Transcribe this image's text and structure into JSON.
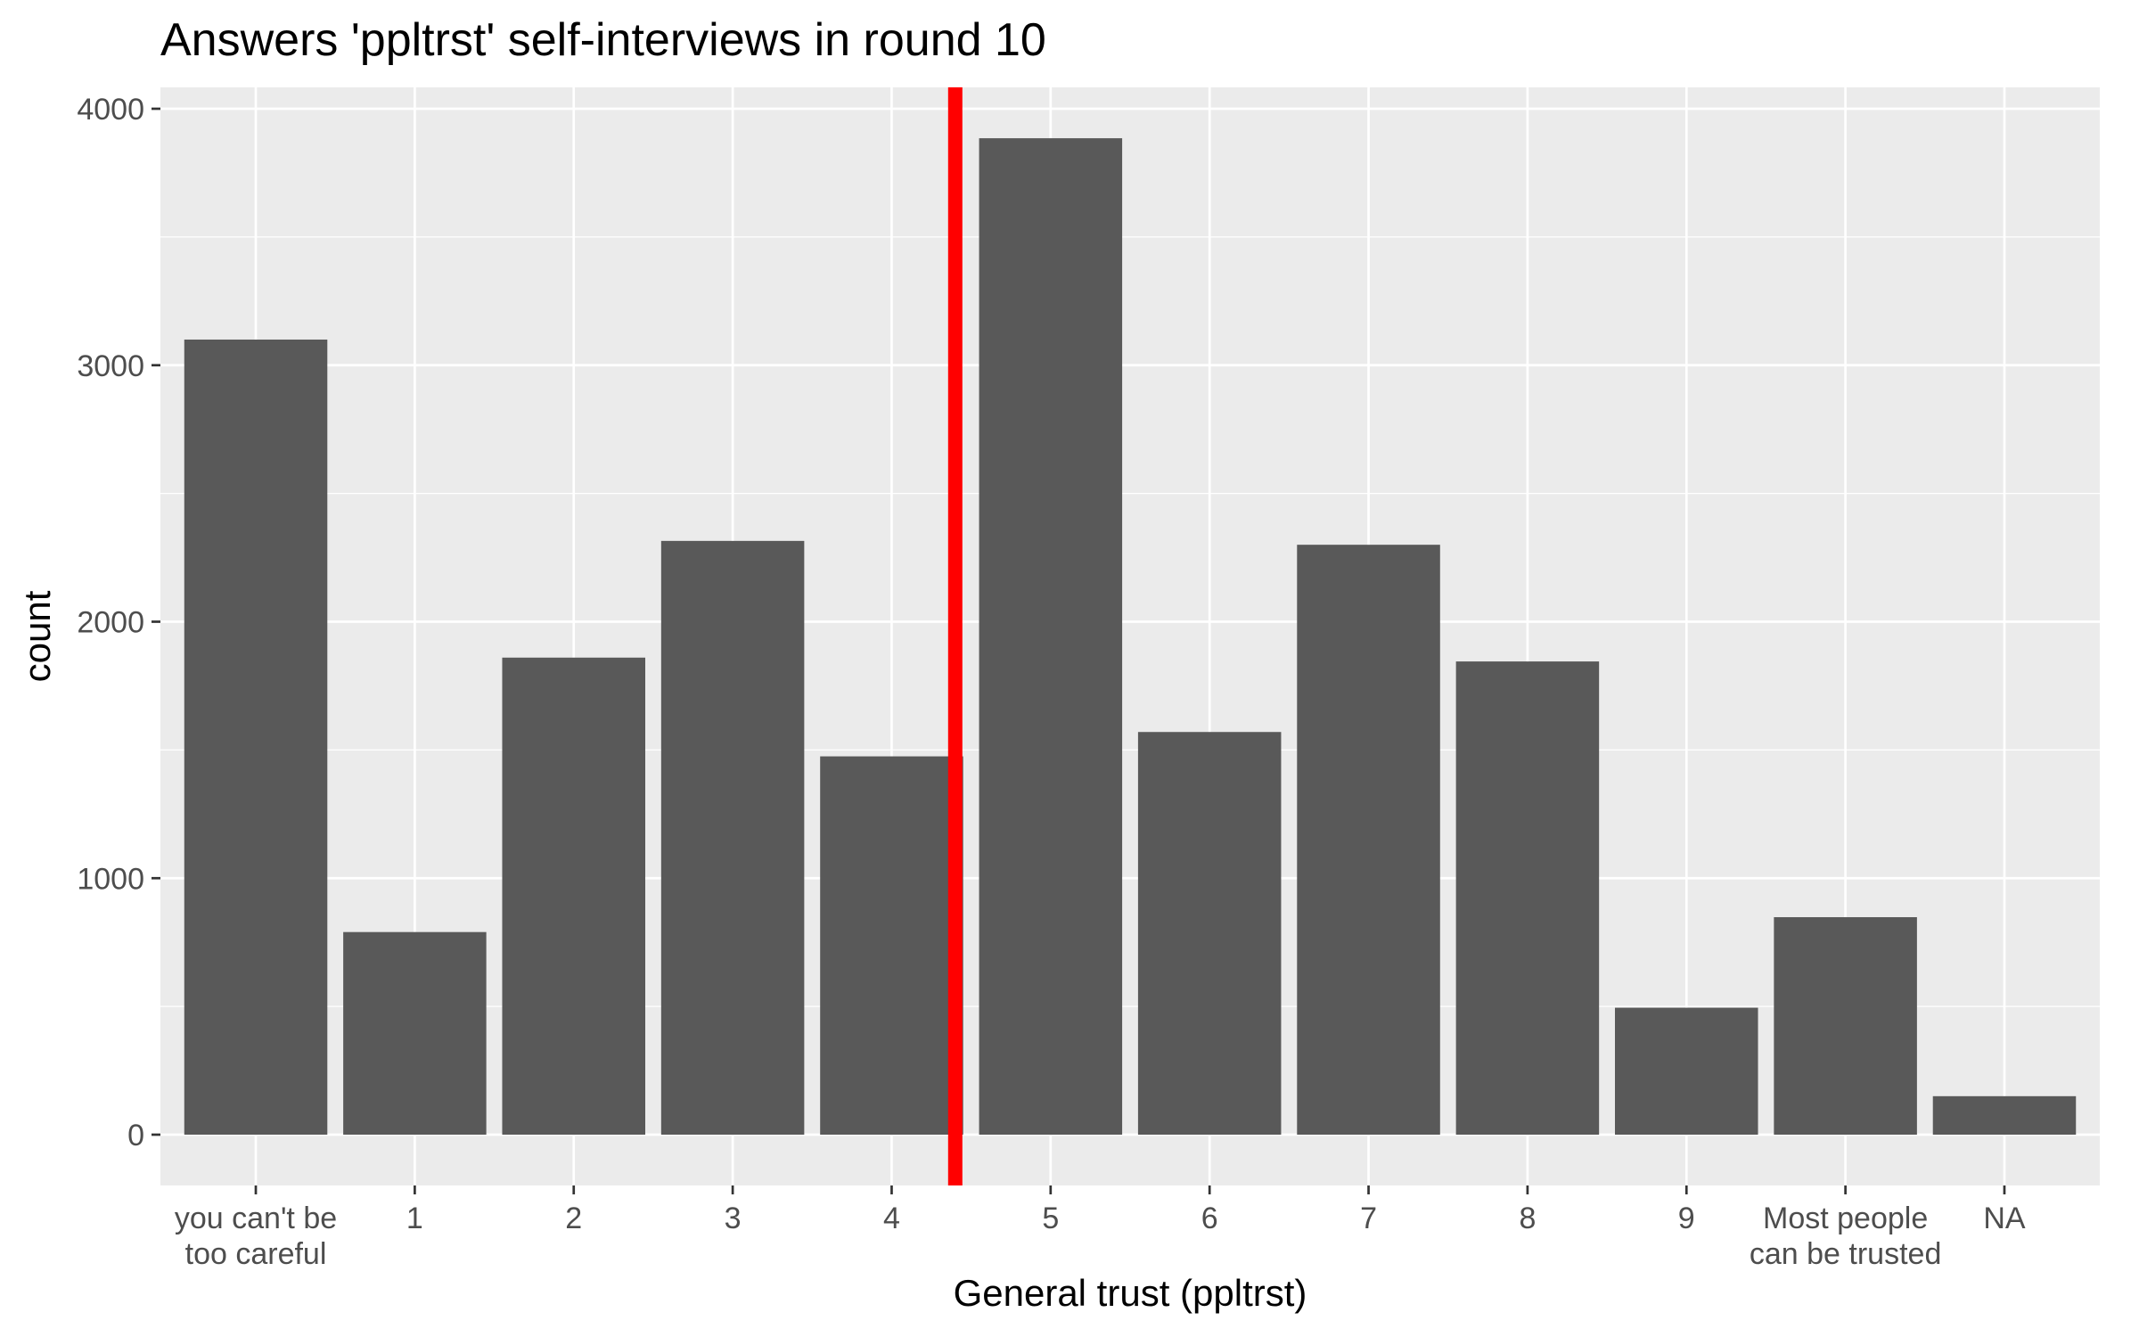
{
  "chart_data": {
    "type": "bar",
    "title": "Answers 'ppltrst' self-interviews in round 10",
    "xlabel": "General trust (ppltrst)",
    "ylabel": "count",
    "categories": [
      "you can't be\ntoo careful",
      "1",
      "2",
      "3",
      "4",
      "5",
      "6",
      "7",
      "8",
      "9",
      "Most people\ncan be trusted",
      "NA"
    ],
    "values": [
      3100,
      790,
      1860,
      2315,
      1475,
      3885,
      1570,
      2300,
      1845,
      495,
      848,
      150
    ],
    "ylim": [
      0,
      4000
    ],
    "yticks": [
      0,
      1000,
      2000,
      3000,
      4000
    ],
    "reference_line": {
      "x": 4.4,
      "color": "#ff0000"
    },
    "bar_color": "#595959",
    "panel_background": "#ebebeb",
    "grid": true
  }
}
